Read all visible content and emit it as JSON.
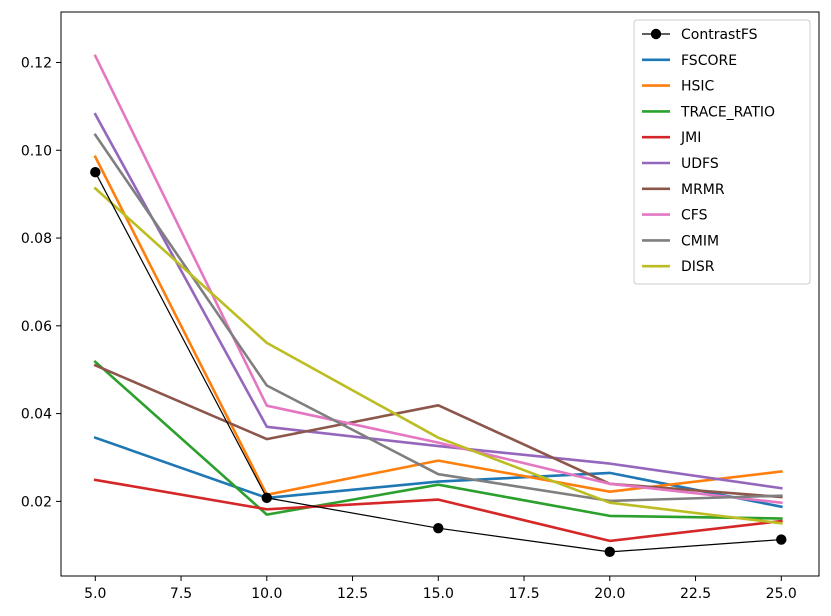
{
  "chart_data": {
    "type": "line",
    "title": "",
    "xlabel": "",
    "ylabel": "",
    "x": [
      5,
      10,
      15,
      20,
      25
    ],
    "xlim": [
      4.0,
      26.1
    ],
    "ylim": [
      0.003,
      0.1315
    ],
    "xticks": [
      5.0,
      7.5,
      10.0,
      12.5,
      15.0,
      17.5,
      20.0,
      22.5,
      25.0
    ],
    "xtick_labels": [
      "5.0",
      "7.5",
      "10.0",
      "12.5",
      "15.0",
      "17.5",
      "20.0",
      "22.5",
      "25.0"
    ],
    "yticks": [
      0.02,
      0.04,
      0.06,
      0.08,
      0.1,
      0.12
    ],
    "ytick_labels": [
      "0.02",
      "0.04",
      "0.06",
      "0.08",
      "0.10",
      "0.12"
    ],
    "grid": false,
    "legend_position": "top-right",
    "series": [
      {
        "name": "ContrastFS",
        "color": "#000000",
        "marker": "circle",
        "values": [
          0.095,
          0.0208,
          0.0139,
          0.0085,
          0.0113
        ]
      },
      {
        "name": "FSCORE",
        "color": "#1f77b4",
        "values": [
          0.0345,
          0.0208,
          0.0245,
          0.0265,
          0.0188
        ]
      },
      {
        "name": "HSIC",
        "color": "#ff7f0e",
        "values": [
          0.0985,
          0.0215,
          0.0293,
          0.0222,
          0.0268
        ]
      },
      {
        "name": "TRACE_RATIO",
        "color": "#2ca02c",
        "values": [
          0.0518,
          0.017,
          0.0238,
          0.0167,
          0.0161
        ]
      },
      {
        "name": "JMI",
        "color": "#d62728",
        "values": [
          0.0249,
          0.0182,
          0.0204,
          0.011,
          0.0155
        ]
      },
      {
        "name": "UDFS",
        "color": "#9467bd",
        "values": [
          0.1082,
          0.037,
          0.0326,
          0.0286,
          0.023
        ]
      },
      {
        "name": "MRMR",
        "color": "#8c564b",
        "values": [
          0.051,
          0.0342,
          0.0419,
          0.024,
          0.021
        ]
      },
      {
        "name": "CFS",
        "color": "#e377c2",
        "values": [
          0.1215,
          0.0418,
          0.0334,
          0.024,
          0.0197
        ]
      },
      {
        "name": "CMIM",
        "color": "#7f7f7f",
        "values": [
          0.1035,
          0.0464,
          0.0262,
          0.0201,
          0.0213
        ]
      },
      {
        "name": "DISR",
        "color": "#bcbd22",
        "values": [
          0.0913,
          0.0561,
          0.0345,
          0.0197,
          0.015
        ]
      }
    ]
  }
}
